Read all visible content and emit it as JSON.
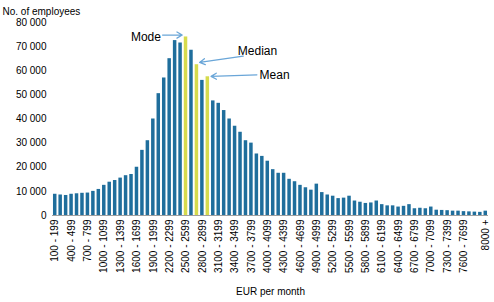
{
  "chart_data": {
    "type": "bar",
    "y_label": "No. of employees",
    "x_label": "EUR per month",
    "categories": [
      "100 - 199",
      null,
      null,
      "400 - 499",
      null,
      null,
      "700 - 799",
      null,
      null,
      "1000 - 1099",
      null,
      null,
      "1300 - 1399",
      null,
      null,
      "1600 - 1699",
      null,
      null,
      "1900 - 1999",
      null,
      null,
      "2200 - 2299",
      null,
      null,
      "2500 - 2599",
      null,
      null,
      "2800 - 2899",
      null,
      null,
      "3100 - 3199",
      null,
      null,
      "3400 - 3499",
      null,
      null,
      "3700 - 3799",
      null,
      null,
      "4000 - 4099",
      null,
      null,
      "4300 - 4399",
      null,
      null,
      "4600 - 4699",
      null,
      null,
      "4900 - 4999",
      null,
      null,
      "5200 - 5299",
      null,
      null,
      "5500 - 5599",
      null,
      null,
      "5800 - 5899",
      null,
      null,
      "6100 - 6199",
      null,
      null,
      "6400 - 6499",
      null,
      null,
      "6700 - 6799",
      null,
      null,
      "7000 - 7099",
      null,
      null,
      "7300 - 7399",
      null,
      null,
      "7600 - 7699",
      null,
      null,
      null,
      "8000 +"
    ],
    "values": [
      8800,
      8500,
      8300,
      8800,
      9000,
      9200,
      9300,
      10000,
      10800,
      12500,
      13800,
      14500,
      15500,
      16500,
      17000,
      20000,
      27000,
      31000,
      40000,
      50500,
      57000,
      65000,
      72500,
      71500,
      74000,
      68500,
      62500,
      56000,
      57500,
      47500,
      46500,
      43500,
      40000,
      37000,
      34500,
      31000,
      30000,
      25500,
      24500,
      22500,
      19000,
      17500,
      17500,
      15000,
      14000,
      12500,
      11500,
      10500,
      13000,
      9500,
      8500,
      8000,
      7000,
      7200,
      8000,
      6000,
      5500,
      5000,
      5200,
      6000,
      4500,
      4000,
      4000,
      3500,
      3800,
      4500,
      2800,
      3000,
      2800,
      3500,
      2200,
      2100,
      2000,
      1800,
      1800,
      1600,
      1500,
      1400,
      1300,
      1800
    ],
    "colors": [
      "#1f6e9c",
      "#1f6e9c",
      "#1f6e9c",
      "#1f6e9c",
      "#1f6e9c",
      "#1f6e9c",
      "#1f6e9c",
      "#1f6e9c",
      "#1f6e9c",
      "#1f6e9c",
      "#1f6e9c",
      "#1f6e9c",
      "#1f6e9c",
      "#1f6e9c",
      "#1f6e9c",
      "#1f6e9c",
      "#1f6e9c",
      "#1f6e9c",
      "#1f6e9c",
      "#1f6e9c",
      "#1f6e9c",
      "#1f6e9c",
      "#1f6e9c",
      "#1f6e9c",
      "#d6db4d",
      "#1f6e9c",
      "#d6db4d",
      "#1f6e9c",
      "#d6db4d",
      "#1f6e9c",
      "#1f6e9c",
      "#1f6e9c",
      "#1f6e9c",
      "#1f6e9c",
      "#1f6e9c",
      "#1f6e9c",
      "#1f6e9c",
      "#1f6e9c",
      "#1f6e9c",
      "#1f6e9c",
      "#1f6e9c",
      "#1f6e9c",
      "#1f6e9c",
      "#1f6e9c",
      "#1f6e9c",
      "#1f6e9c",
      "#1f6e9c",
      "#1f6e9c",
      "#1f6e9c",
      "#1f6e9c",
      "#1f6e9c",
      "#1f6e9c",
      "#1f6e9c",
      "#1f6e9c",
      "#1f6e9c",
      "#1f6e9c",
      "#1f6e9c",
      "#1f6e9c",
      "#1f6e9c",
      "#1f6e9c",
      "#1f6e9c",
      "#1f6e9c",
      "#1f6e9c",
      "#1f6e9c",
      "#1f6e9c",
      "#1f6e9c",
      "#1f6e9c",
      "#1f6e9c",
      "#1f6e9c",
      "#1f6e9c",
      "#1f6e9c",
      "#1f6e9c",
      "#1f6e9c",
      "#1f6e9c",
      "#1f6e9c",
      "#1f6e9c",
      "#1f6e9c",
      "#1f6e9c",
      "#1f6e9c",
      "#1f6e9c"
    ],
    "ylim": [
      0,
      80000
    ],
    "yticks": [
      0,
      {
        "value": 10000,
        "label": "10 000"
      },
      {
        "value": 20000,
        "label": "20 000"
      },
      {
        "value": 30000,
        "label": "30 000"
      },
      {
        "value": 40000,
        "label": "40 000"
      },
      {
        "value": 50000,
        "label": "50 000"
      },
      {
        "value": 60000,
        "label": "60 000"
      },
      {
        "value": 70000,
        "label": "70 000"
      },
      {
        "value": 80000,
        "label": "80 000"
      }
    ],
    "grid": false,
    "annotations": [
      {
        "text": "Mode",
        "bar": 24
      },
      {
        "text": "Median",
        "bar": 26
      },
      {
        "text": "Mean",
        "bar": 28
      }
    ]
  }
}
